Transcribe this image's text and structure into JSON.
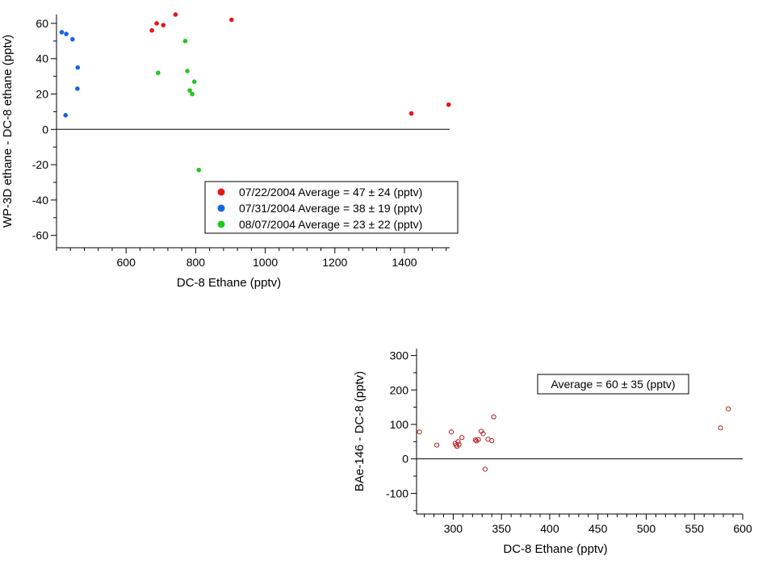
{
  "chart_data": [
    {
      "type": "scatter",
      "xlabel": "DC-8 Ethane (pptv)",
      "ylabel": "WP-3D ethane  - DC-8 ethane (pptv)",
      "xlim": [
        400,
        1530
      ],
      "ylim": [
        -67,
        65
      ],
      "xticks": [
        600,
        800,
        1000,
        1200,
        1400
      ],
      "yticks": [
        -60,
        -40,
        -20,
        0,
        20,
        40,
        60
      ],
      "zero_line": true,
      "legend": "lower-right",
      "series": [
        {
          "name": "07/22/2004 Average = 47 ± 24 (pptv)",
          "color": "#e8141b",
          "points": [
            [
              674,
              56
            ],
            [
              688,
              60
            ],
            [
              707,
              59
            ],
            [
              742,
              65
            ],
            [
              903,
              62
            ],
            [
              1420,
              9
            ],
            [
              1527,
              14
            ]
          ]
        },
        {
          "name": "07/31/2004 Average = 38 ± 19 (pptv)",
          "color": "#1464e6",
          "points": [
            [
              415,
              55
            ],
            [
              428,
              54
            ],
            [
              446,
              51
            ],
            [
              461,
              35
            ],
            [
              460,
              23
            ],
            [
              426,
              8
            ]
          ]
        },
        {
          "name": "08/07/2004 Average = 23 ± 22 (pptv)",
          "color": "#1ec81e",
          "points": [
            [
              692,
              32
            ],
            [
              770,
              50
            ],
            [
              776,
              33
            ],
            [
              783,
              22
            ],
            [
              790,
              20
            ],
            [
              796,
              27
            ],
            [
              809,
              -23
            ]
          ]
        }
      ]
    },
    {
      "type": "scatter",
      "xlabel": "DC-8 Ethane (pptv)",
      "ylabel": "BAe-146  - DC-8 (pptv)",
      "xlim": [
        262,
        600
      ],
      "ylim": [
        -160,
        320
      ],
      "xticks": [
        300,
        350,
        400,
        450,
        500,
        550,
        600
      ],
      "yticks": [
        -100,
        0,
        100,
        200,
        300
      ],
      "zero_line": true,
      "annotation": "Average = 60 ± 35 (pptv)",
      "series": [
        {
          "color": "#b41e1e",
          "marker": "open-circle",
          "points": [
            [
              265,
              78
            ],
            [
              283,
              40
            ],
            [
              298,
              78
            ],
            [
              302,
              45
            ],
            [
              303,
              40
            ],
            [
              304,
              36
            ],
            [
              305,
              50
            ],
            [
              306,
              42
            ],
            [
              309,
              62
            ],
            [
              323,
              55
            ],
            [
              324,
              52
            ],
            [
              326,
              56
            ],
            [
              329,
              80
            ],
            [
              331,
              73
            ],
            [
              333,
              -30
            ],
            [
              336,
              57
            ],
            [
              340,
              53
            ],
            [
              342,
              122
            ],
            [
              577,
              90
            ],
            [
              585,
              145
            ]
          ]
        }
      ]
    }
  ]
}
